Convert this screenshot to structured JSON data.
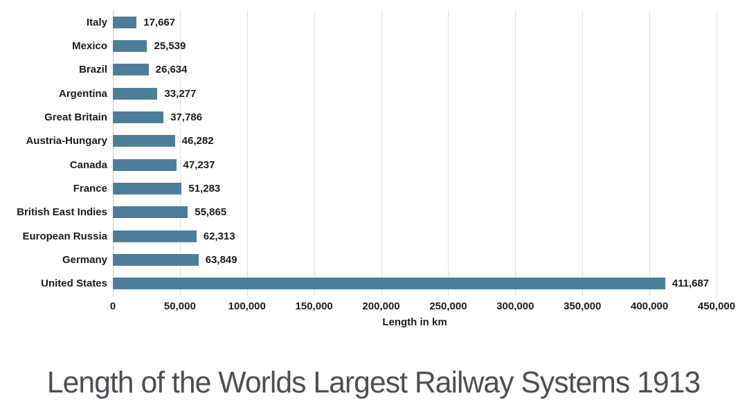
{
  "chart_data": {
    "type": "bar",
    "orientation": "horizontal",
    "title": "Length of the Worlds Largest Railway Systems 1913",
    "xlabel": "Length in km",
    "categories": [
      "Italy",
      "Mexico",
      "Brazil",
      "Argentina",
      "Great Britain",
      "Austria-Hungary",
      "Canada",
      "France",
      "British East Indies",
      "European Russia",
      "Germany",
      "United States"
    ],
    "values": [
      17667,
      25539,
      26634,
      33277,
      37786,
      46282,
      47237,
      51283,
      55865,
      62313,
      63849,
      411687
    ],
    "value_labels": [
      "17,667",
      "25,539",
      "26,634",
      "33,277",
      "37,786",
      "46,282",
      "47,237",
      "51,283",
      "55,865",
      "62,313",
      "63,849",
      "411,687"
    ],
    "x_ticks": [
      0,
      50000,
      100000,
      150000,
      200000,
      250000,
      300000,
      350000,
      400000,
      450000
    ],
    "x_tick_labels": [
      "0",
      "50,000",
      "100,000",
      "150,000",
      "200,000",
      "250,000",
      "300,000",
      "350,000",
      "400,000",
      "450,000"
    ],
    "xlim": [
      0,
      450000
    ],
    "grid": true,
    "legend": "none",
    "colors": {
      "bar": "#4C7E99",
      "grid": "#e2e2e2",
      "axis_line": "#c9c9c9",
      "label": "#1b1b1b",
      "title": "#4c5055",
      "background": "#ffffff"
    }
  }
}
